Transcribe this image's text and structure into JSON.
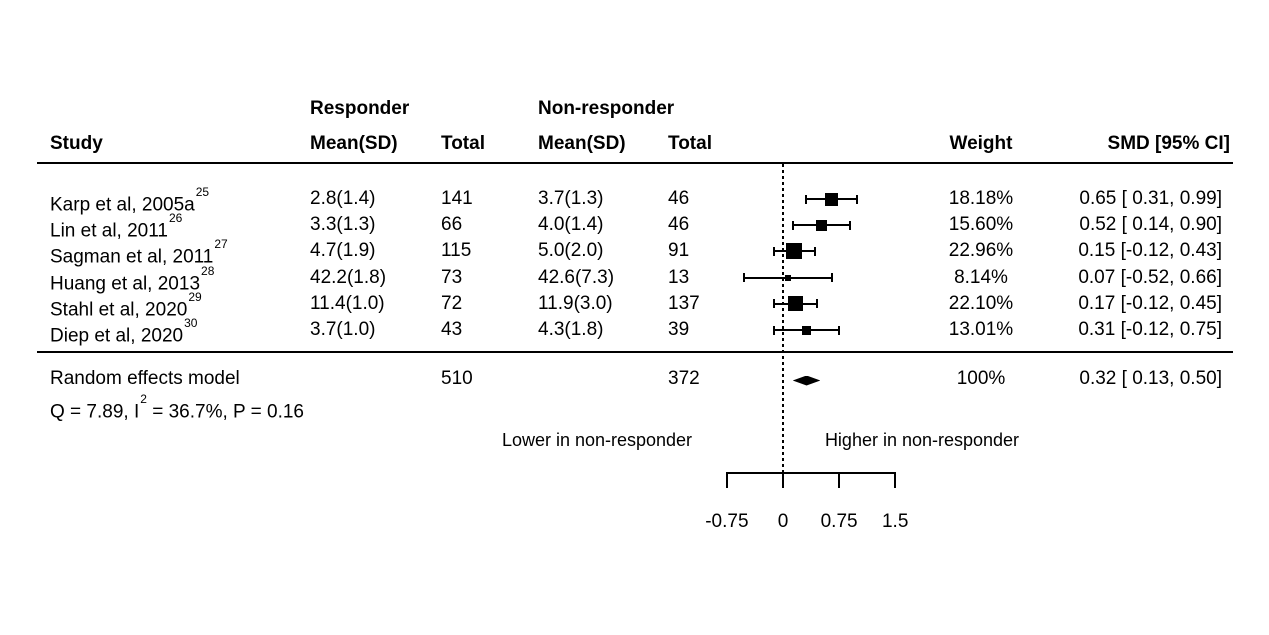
{
  "meta": {
    "background_color": "#ffffff",
    "foreground_color": "#000000"
  },
  "header": {
    "group_responder": "Responder",
    "group_nonresponder": "Non-responder",
    "col_study": "Study",
    "col_mean_sd_1": "Mean(SD)",
    "col_total_1": "Total",
    "col_mean_sd_2": "Mean(SD)",
    "col_total_2": "Total",
    "col_weight": "Weight",
    "col_smd": "SMD [95% CI]"
  },
  "chart_data": {
    "type": "forest",
    "effect_measure": "SMD",
    "axis": {
      "range": [
        -0.75,
        1.5
      ],
      "ticks": [
        -0.75,
        0,
        0.75,
        1.5
      ],
      "tick_labels": [
        "-0.75",
        "0",
        "0.75",
        "1.5"
      ],
      "zero_line": 0,
      "left_direction_label": "Lower in non-responder",
      "right_direction_label": "Higher in non-responder"
    },
    "studies": [
      {
        "name": "Karp et al, 2005a",
        "ref": "25",
        "responder_mean_sd": "2.8(1.4)",
        "responder_total": "141",
        "nonresponder_mean_sd": "3.7(1.3)",
        "nonresponder_total": "46",
        "weight_label": "18.18%",
        "weight_value": 18.18,
        "smd": 0.65,
        "ci_low": 0.31,
        "ci_high": 0.99,
        "smd_label": "0.65 [ 0.31, 0.99]"
      },
      {
        "name": "Lin et al, 2011",
        "ref": "26",
        "responder_mean_sd": "3.3(1.3)",
        "responder_total": "66",
        "nonresponder_mean_sd": "4.0(1.4)",
        "nonresponder_total": "46",
        "weight_label": "15.60%",
        "weight_value": 15.6,
        "smd": 0.52,
        "ci_low": 0.14,
        "ci_high": 0.9,
        "smd_label": "0.52 [ 0.14, 0.90]"
      },
      {
        "name": "Sagman et al, 2011",
        "ref": "27",
        "responder_mean_sd": "4.7(1.9)",
        "responder_total": "115",
        "nonresponder_mean_sd": "5.0(2.0)",
        "nonresponder_total": "91",
        "weight_label": "22.96%",
        "weight_value": 22.96,
        "smd": 0.15,
        "ci_low": -0.12,
        "ci_high": 0.43,
        "smd_label": "0.15 [-0.12, 0.43]"
      },
      {
        "name": "Huang et al, 2013",
        "ref": "28",
        "responder_mean_sd": "42.2(1.8)",
        "responder_total": "73",
        "nonresponder_mean_sd": "42.6(7.3)",
        "nonresponder_total": "13",
        "weight_label": "8.14%",
        "weight_value": 8.14,
        "smd": 0.07,
        "ci_low": -0.52,
        "ci_high": 0.66,
        "smd_label": "0.07 [-0.52, 0.66]"
      },
      {
        "name": "Stahl et al, 2020",
        "ref": "29",
        "responder_mean_sd": "11.4(1.0)",
        "responder_total": "72",
        "nonresponder_mean_sd": "11.9(3.0)",
        "nonresponder_total": "137",
        "weight_label": "22.10%",
        "weight_value": 22.1,
        "smd": 0.17,
        "ci_low": -0.12,
        "ci_high": 0.45,
        "smd_label": "0.17 [-0.12, 0.45]"
      },
      {
        "name": "Diep et al, 2020",
        "ref": "30",
        "responder_mean_sd": "3.7(1.0)",
        "responder_total": "43",
        "nonresponder_mean_sd": "4.3(1.8)",
        "nonresponder_total": "39",
        "weight_label": "13.01%",
        "weight_value": 13.01,
        "smd": 0.31,
        "ci_low": -0.12,
        "ci_high": 0.75,
        "smd_label": "0.31 [-0.12, 0.75]"
      }
    ],
    "summary": {
      "label": "Random effects model",
      "responder_total": "510",
      "nonresponder_total": "372",
      "weight_label": "100%",
      "smd": 0.32,
      "ci_low": 0.13,
      "ci_high": 0.5,
      "smd_label": "0.32 [ 0.13, 0.50]"
    },
    "heterogeneity": {
      "prefix": "Q = 7.89, I",
      "sup": "2",
      "suffix": " = 36.7%, P = 0.16"
    }
  }
}
